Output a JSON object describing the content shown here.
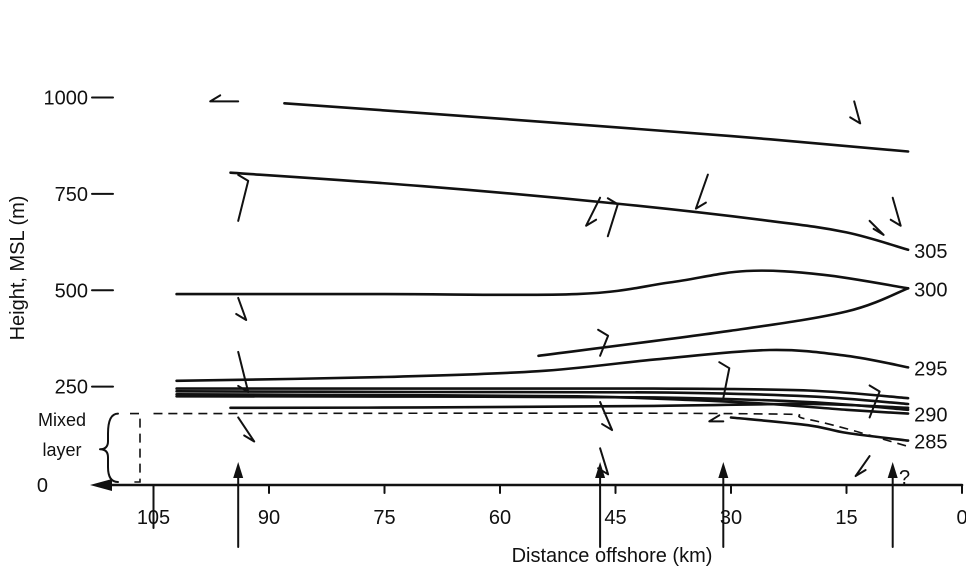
{
  "chart_data": {
    "type": "line",
    "title": "",
    "xlabel": "Distance offshore (km)",
    "ylabel": "Height, MSL (m)",
    "xlim": [
      110,
      0
    ],
    "ylim": [
      0,
      1000
    ],
    "x_ticks": [
      "105",
      "90",
      "75",
      "60",
      "45",
      "30",
      "15",
      "0"
    ],
    "y_ticks": [
      "0",
      "250",
      "500",
      "750",
      "1000"
    ],
    "mixed_layer_label": [
      "Mixed",
      "layer"
    ],
    "question_mark": "?",
    "sounding_locations_km": [
      94,
      47,
      31,
      9
    ],
    "series": [
      {
        "name": "305",
        "x": [
          95,
          70,
          45,
          25,
          15,
          7
        ],
        "y": [
          805,
          770,
          725,
          680,
          650,
          605
        ]
      },
      {
        "name": "300",
        "x": [
          102,
          75,
          50,
          38,
          28,
          18,
          7
        ],
        "y": [
          490,
          490,
          490,
          520,
          550,
          540,
          505
        ]
      },
      {
        "name": "295",
        "x": [
          102,
          75,
          55,
          40,
          25,
          15,
          7
        ],
        "y": [
          265,
          275,
          290,
          320,
          345,
          330,
          300
        ]
      },
      {
        "name": "290",
        "x": [
          102,
          75,
          50,
          35,
          25,
          15,
          7
        ],
        "y": [
          230,
          228,
          225,
          215,
          205,
          190,
          180
        ]
      },
      {
        "name": "285",
        "x": [
          30,
          20,
          15,
          7
        ],
        "y": [
          170,
          150,
          130,
          110
        ]
      }
    ],
    "unlabeled_isentropes": [
      {
        "x": [
          88,
          60,
          30,
          7
        ],
        "y": [
          985,
          945,
          900,
          860
        ]
      },
      {
        "x": [
          55,
          30,
          15,
          7
        ],
        "y": [
          330,
          395,
          445,
          505
        ]
      },
      {
        "x": [
          102,
          70,
          40,
          20,
          7
        ],
        "y": [
          245,
          245,
          245,
          240,
          220
        ]
      },
      {
        "x": [
          102,
          70,
          40,
          20,
          7
        ],
        "y": [
          238,
          236,
          235,
          225,
          205
        ]
      },
      {
        "x": [
          102,
          70,
          40,
          20,
          7
        ],
        "y": [
          225,
          224,
          222,
          210,
          190
        ]
      },
      {
        "x": [
          95,
          70,
          40,
          20,
          7
        ],
        "y": [
          195,
          196,
          200,
          205,
          195
        ]
      }
    ],
    "mixed_layer_top": {
      "x": [
        105,
        30,
        20,
        7
      ],
      "y": [
        180,
        180,
        165,
        95
      ]
    }
  }
}
